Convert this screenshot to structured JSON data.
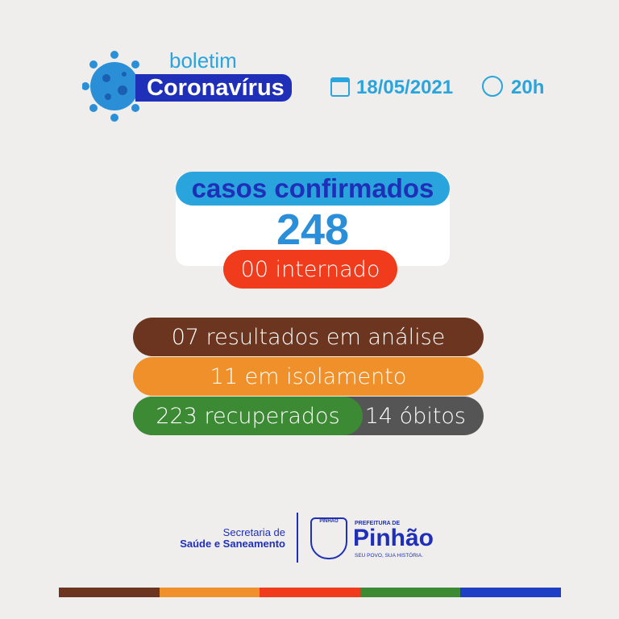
{
  "header": {
    "boletim": "boletim",
    "title": "Coronavírus",
    "date": "18/05/2021",
    "time": "20h"
  },
  "confirmed": {
    "label": "casos confirmados",
    "value": "248",
    "hospitalized": "00 internado"
  },
  "stats": {
    "analysis": "07 resultados em análise",
    "isolation": "11 em isolamento",
    "recovered": "223 recuperados",
    "deaths": "14 óbitos"
  },
  "footer": {
    "secretaria_line1": "Secretaria de",
    "secretaria_line2": "Saúde e Saneamento",
    "seal": "PINHÃO",
    "prefeitura": "PREFEITURA DE",
    "city": "Pinhão",
    "slogan": "SEU POVO, SUA HISTÓRIA."
  },
  "colors": {
    "brown": "#6b3520",
    "orange": "#f0902a",
    "red": "#f03c1c",
    "green": "#3d8a34",
    "blue": "#1f3fc4",
    "gray": "#555555",
    "cyan": "#2aa4dc"
  }
}
